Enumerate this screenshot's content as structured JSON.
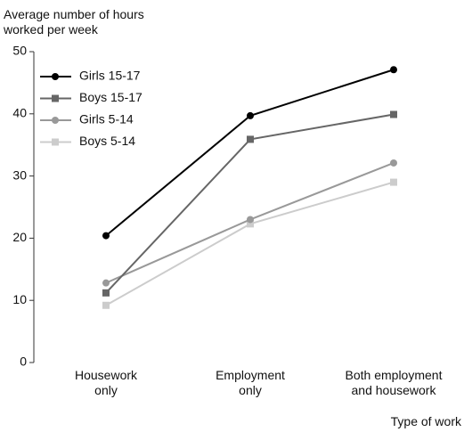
{
  "chart_data": {
    "type": "line",
    "y_label": "Average number of hours worked per week",
    "x_label": "Type of work",
    "categories": [
      "Housework only",
      "Employment only",
      "Both employment and housework"
    ],
    "ylim": [
      0,
      50
    ],
    "yticks": [
      0,
      10,
      20,
      30,
      40,
      50
    ],
    "legend": "upper-left",
    "series": [
      {
        "name": "Girls 15-17",
        "color": "#000000",
        "marker": "circle",
        "values": [
          20.4,
          39.7,
          47.1
        ]
      },
      {
        "name": "Boys 15-17",
        "color": "#666666",
        "marker": "square",
        "values": [
          11.2,
          35.9,
          39.9
        ]
      },
      {
        "name": "Girls 5-14",
        "color": "#999999",
        "marker": "circle",
        "values": [
          12.8,
          23.0,
          32.1
        ]
      },
      {
        "name": "Boys 5-14",
        "color": "#cccccc",
        "marker": "square",
        "values": [
          9.2,
          22.3,
          29.0
        ]
      }
    ]
  }
}
